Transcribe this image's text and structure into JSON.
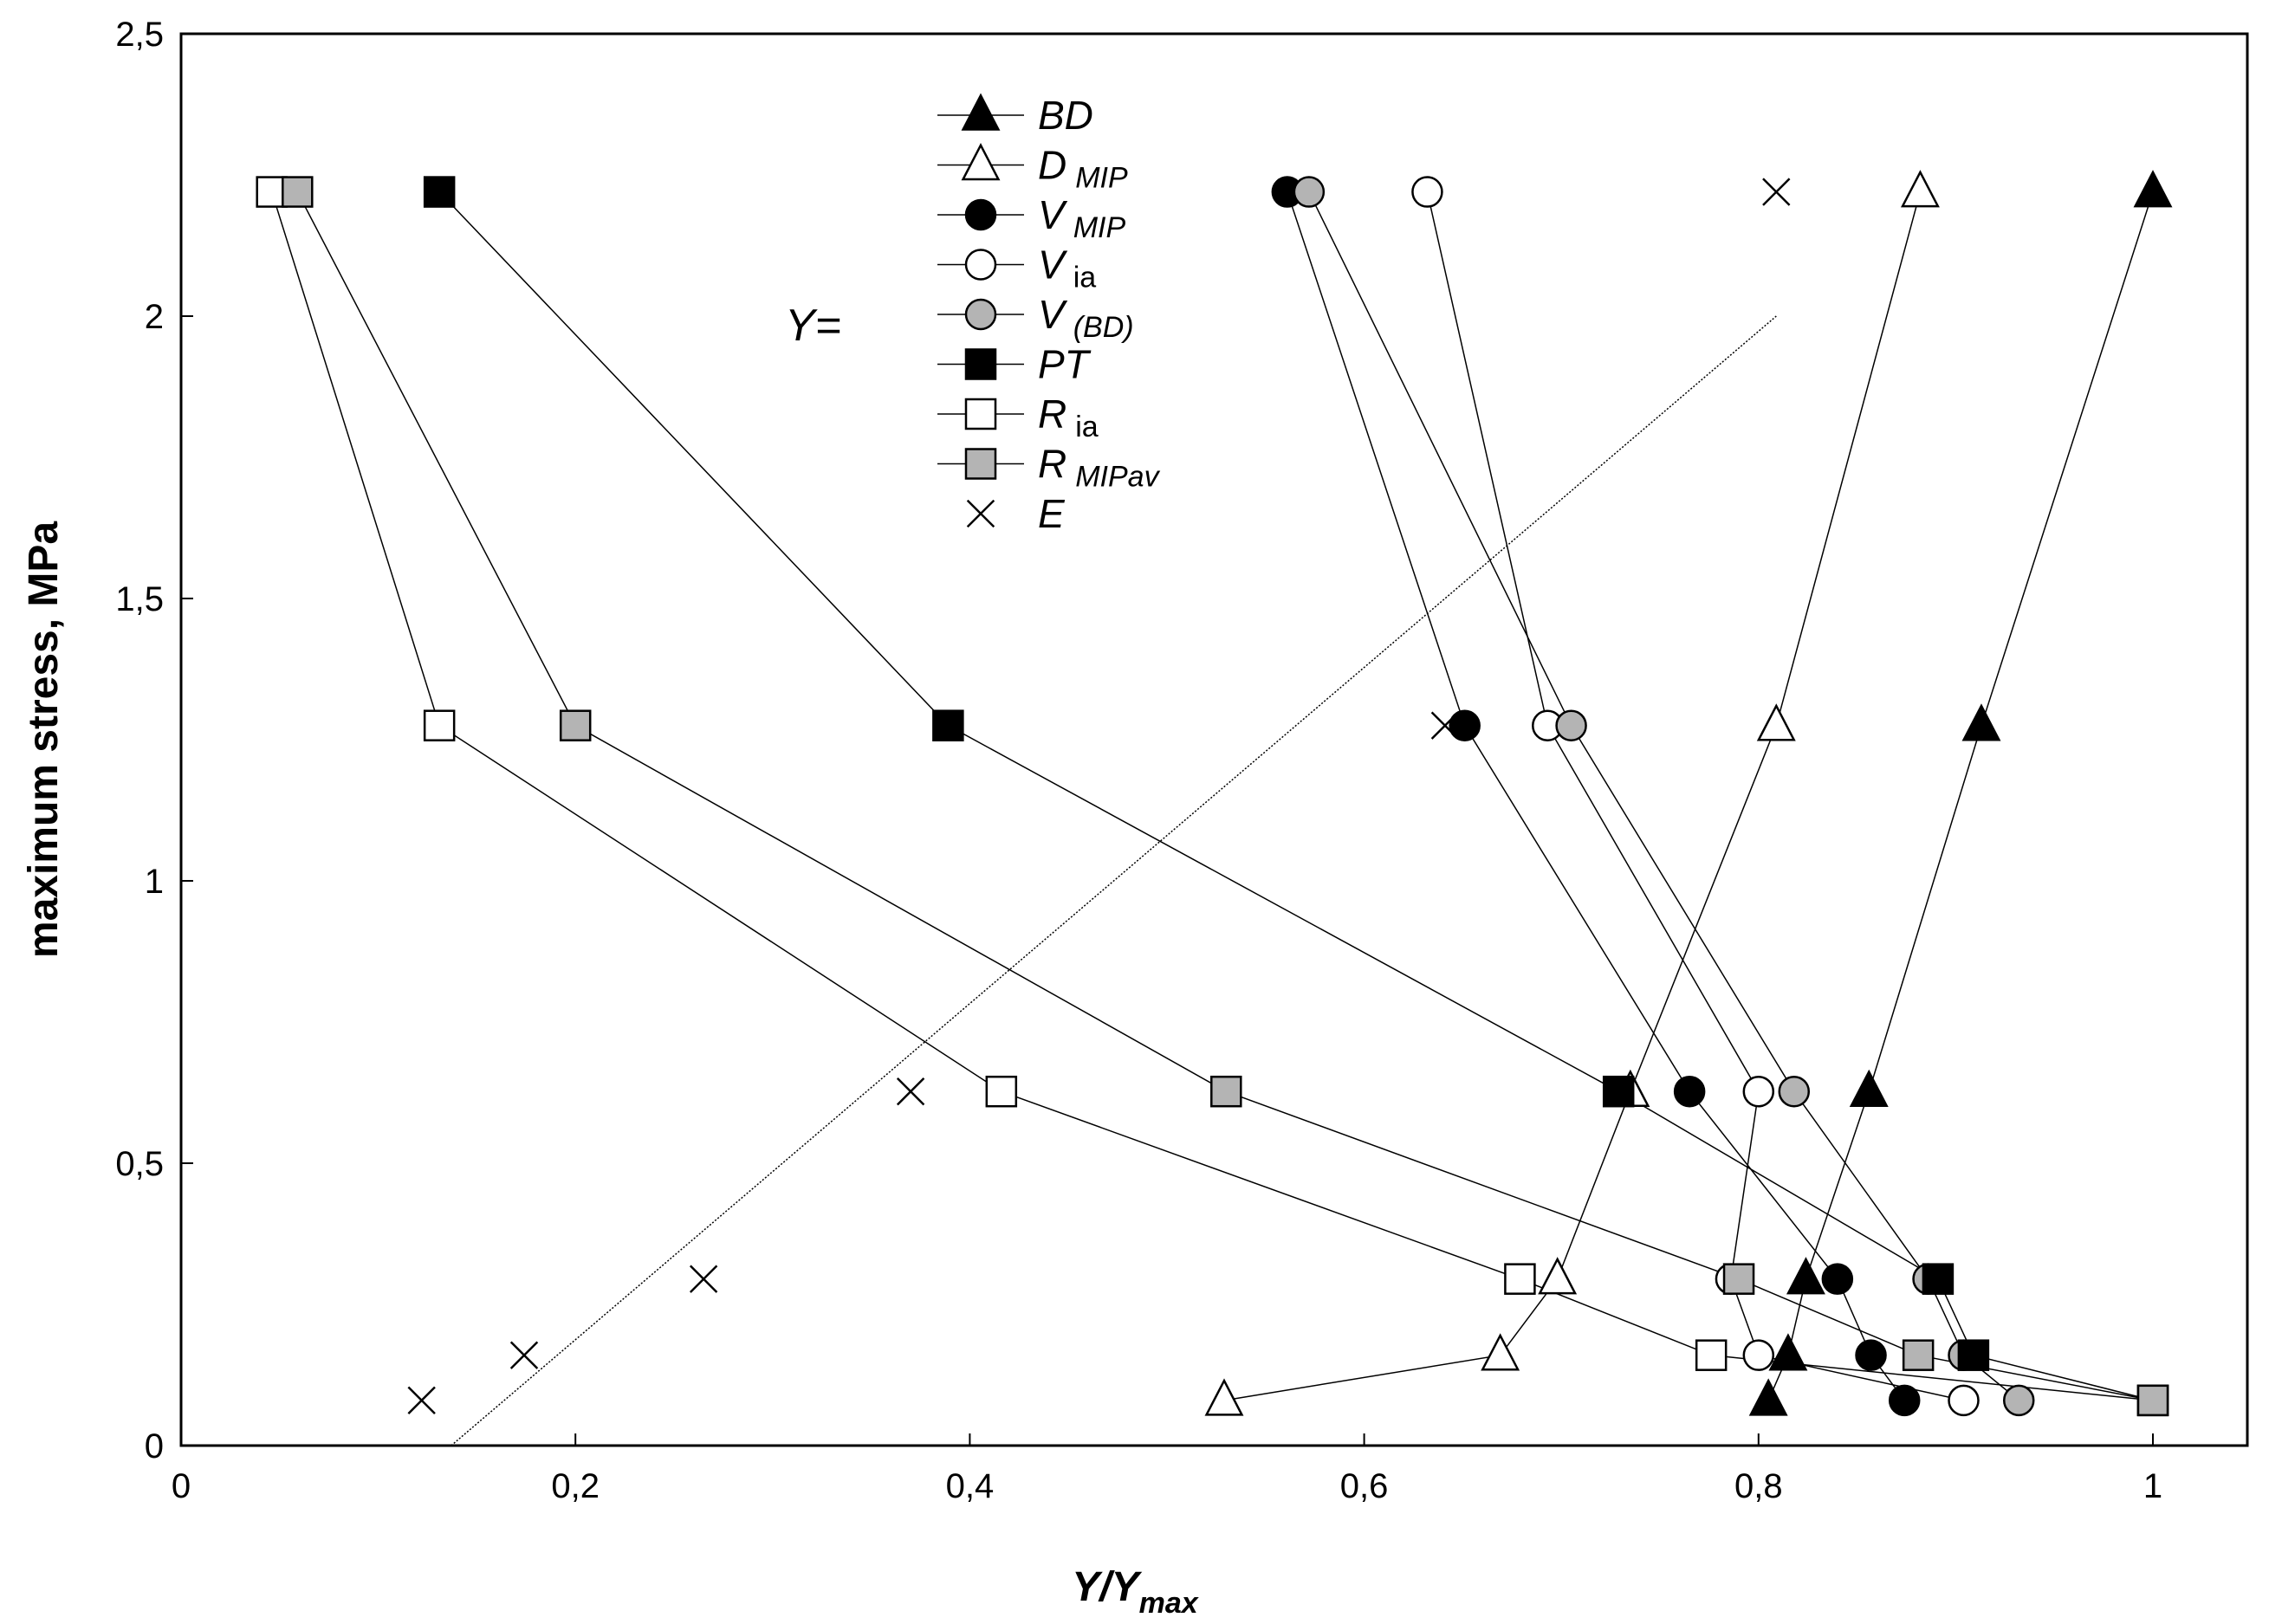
{
  "chart_data": {
    "type": "line",
    "xlabel": {
      "main": "Y/Y",
      "sub": "max"
    },
    "ylabel": "maximum stress, MPa",
    "xlim": [
      0,
      1.05
    ],
    "ylim": [
      0,
      2.5
    ],
    "xticks": [
      "0",
      "0,2",
      "0,4",
      "0,6",
      "0,8",
      "1"
    ],
    "xtick_values": [
      0,
      0.2,
      0.4,
      0.6,
      0.8,
      1.0
    ],
    "yticks": [
      "0",
      "0,5",
      "1",
      "1,5",
      "2",
      "2,5"
    ],
    "ytick_values": [
      0,
      0.5,
      1.0,
      1.5,
      2.0,
      2.5
    ],
    "legend_heading": "Y=",
    "legend_position": "top-center",
    "stress_levels": [
      0.08,
      0.16,
      0.295,
      0.627,
      1.275,
      2.22
    ],
    "series": [
      {
        "name": "BD",
        "sub": "",
        "sub_italic": false,
        "marker": "triangle",
        "fill": "#000000",
        "line": true,
        "x": [
          0.805,
          0.815,
          0.824,
          0.856,
          0.913,
          1.0
        ]
      },
      {
        "name": "D",
        "sub": "MIP",
        "sub_italic": true,
        "marker": "triangle",
        "fill": "#ffffff",
        "line": true,
        "x": [
          0.529,
          0.669,
          0.698,
          0.735,
          0.809,
          0.882
        ]
      },
      {
        "name": "V",
        "sub": "MIP",
        "sub_italic": true,
        "marker": "circle",
        "fill": "#000000",
        "line": true,
        "x": [
          0.874,
          0.857,
          0.84,
          0.765,
          0.651,
          0.561
        ]
      },
      {
        "name": "V",
        "sub": "ia",
        "sub_italic": false,
        "marker": "circle",
        "fill": "#ffffff",
        "line": true,
        "x": [
          0.904,
          0.8,
          0.786,
          0.8,
          0.693,
          0.632
        ]
      },
      {
        "name": "V",
        "sub": "(BD)",
        "sub_italic": true,
        "marker": "circle",
        "fill": "#b4b4b4",
        "line": true,
        "x": [
          0.932,
          0.904,
          0.886,
          0.818,
          0.705,
          0.572
        ]
      },
      {
        "name": "PT",
        "sub": "",
        "sub_italic": false,
        "marker": "square",
        "fill": "#000000",
        "line": true,
        "x": [
          1.0,
          0.909,
          0.891,
          0.729,
          0.389,
          0.131
        ]
      },
      {
        "name": "R",
        "sub": "ia",
        "sub_italic": false,
        "marker": "square",
        "fill": "#ffffff",
        "line": true,
        "x": [
          1.0,
          0.776,
          0.679,
          0.416,
          0.131,
          0.046
        ]
      },
      {
        "name": "R",
        "sub": "MIPav",
        "sub_italic": true,
        "marker": "square",
        "fill": "#b4b4b4",
        "line": true,
        "x": [
          1.0,
          0.881,
          0.79,
          0.53,
          0.2,
          0.059
        ]
      },
      {
        "name": "E",
        "sub": "",
        "sub_italic": false,
        "marker": "x",
        "fill": "none",
        "line": false,
        "x": [
          0.122,
          0.174,
          0.265,
          0.37,
          0.641,
          0.809
        ]
      }
    ],
    "trendline": {
      "x": [
        0.137,
        0.809
      ],
      "y": [
        0.0,
        2.0
      ]
    }
  }
}
